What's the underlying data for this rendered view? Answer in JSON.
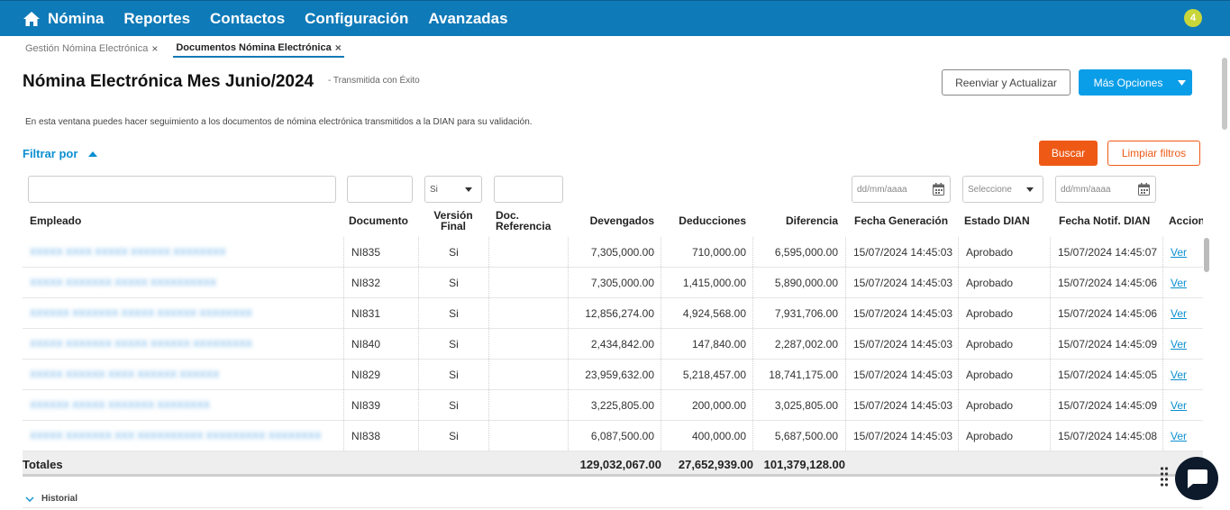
{
  "nav": {
    "home_label": "Nómina",
    "items": [
      "Reportes",
      "Contactos",
      "Configuración",
      "Avanzadas"
    ],
    "notification_count": "4"
  },
  "tabs": [
    {
      "label": "Gestión Nómina Electrónica",
      "close": "×"
    },
    {
      "label": "Documentos Nómina Electrónica",
      "close": "×"
    }
  ],
  "page": {
    "title": "Nómina Electrónica Mes Junio/2024",
    "status": "- Transmitida con Éxito",
    "description": "En esta ventana puedes hacer seguimiento a los documentos de nómina electrónica transmitidos a la DIAN para su validación."
  },
  "actions": {
    "resend": "Reenviar y Actualizar",
    "more": "Más Opciones",
    "search": "Buscar",
    "clear": "Limpiar filtros"
  },
  "filters": {
    "title": "Filtrar por",
    "version_value": "Si",
    "date_placeholder": "dd/mm/aaaa",
    "estado_placeholder": "Seleccione"
  },
  "columns": {
    "empleado": "Empleado",
    "documento": "Documento",
    "version_1": "Versión",
    "version_2": "Final",
    "docref_1": "Doc.",
    "docref_2": "Referencia",
    "devengados": "Devengados",
    "deducciones": "Deducciones",
    "diferencia": "Diferencia",
    "fecha_gen": "Fecha Generación",
    "estado": "Estado DIAN",
    "fecha_notif": "Fecha Notif. DIAN",
    "acciones": "Accion"
  },
  "rows": [
    {
      "empleado": "XXXXX XXXX XXXXX XXXXXX XXXXXXXX",
      "documento": "NI835",
      "version": "Si",
      "devengados": "7,305,000.00",
      "deducciones": "710,000.00",
      "diferencia": "6,595,000.00",
      "fecha_gen": "15/07/2024 14:45:03",
      "estado": "Aprobado",
      "fecha_notif": "15/07/2024 14:45:07",
      "accion": "Ver"
    },
    {
      "empleado": "XXXXX XXXXXXX XXXXX XXXXXXXXXX",
      "documento": "NI832",
      "version": "Si",
      "devengados": "7,305,000.00",
      "deducciones": "1,415,000.00",
      "diferencia": "5,890,000.00",
      "fecha_gen": "15/07/2024 14:45:03",
      "estado": "Aprobado",
      "fecha_notif": "15/07/2024 14:45:06",
      "accion": "Ver"
    },
    {
      "empleado": "XXXXXX XXXXXXX XXXXX XXXXXX XXXXXXXX",
      "documento": "NI831",
      "version": "Si",
      "devengados": "12,856,274.00",
      "deducciones": "4,924,568.00",
      "diferencia": "7,931,706.00",
      "fecha_gen": "15/07/2024 14:45:03",
      "estado": "Aprobado",
      "fecha_notif": "15/07/2024 14:45:06",
      "accion": "Ver"
    },
    {
      "empleado": "XXXXX XXXXXXX XXXXX XXXXXX XXXXXXXXX",
      "documento": "NI840",
      "version": "Si",
      "devengados": "2,434,842.00",
      "deducciones": "147,840.00",
      "diferencia": "2,287,002.00",
      "fecha_gen": "15/07/2024 14:45:03",
      "estado": "Aprobado",
      "fecha_notif": "15/07/2024 14:45:09",
      "accion": "Ver"
    },
    {
      "empleado": "XXXXX XXXXXX XXXX XXXXXX XXXXXX",
      "documento": "NI829",
      "version": "Si",
      "devengados": "23,959,632.00",
      "deducciones": "5,218,457.00",
      "diferencia": "18,741,175.00",
      "fecha_gen": "15/07/2024 14:45:03",
      "estado": "Aprobado",
      "fecha_notif": "15/07/2024 14:45:05",
      "accion": "Ver"
    },
    {
      "empleado": "XXXXXX XXXXX XXXXXXX XXXXXXXX",
      "documento": "NI839",
      "version": "Si",
      "devengados": "3,225,805.00",
      "deducciones": "200,000.00",
      "diferencia": "3,025,805.00",
      "fecha_gen": "15/07/2024 14:45:03",
      "estado": "Aprobado",
      "fecha_notif": "15/07/2024 14:45:09",
      "accion": "Ver"
    },
    {
      "empleado": "XXXXX XXXXXXX XXX XXXXXXXXXX XXXXXXXXX XXXXXXXX",
      "documento": "NI838",
      "version": "Si",
      "devengados": "6,087,500.00",
      "deducciones": "400,000.00",
      "diferencia": "5,687,500.00",
      "fecha_gen": "15/07/2024 14:45:03",
      "estado": "Aprobado",
      "fecha_notif": "15/07/2024 14:45:08",
      "accion": "Ver"
    }
  ],
  "totals": {
    "label": "Totales",
    "devengados": "129,032,067.00",
    "deducciones": "27,652,939.00",
    "diferencia": "101,379,128.00"
  },
  "historial": "Historial",
  "colors": {
    "topbar": "#0f7ab8",
    "primary": "#0b9ee8",
    "accent": "#ee5a16",
    "badge": "#c9d63a"
  }
}
